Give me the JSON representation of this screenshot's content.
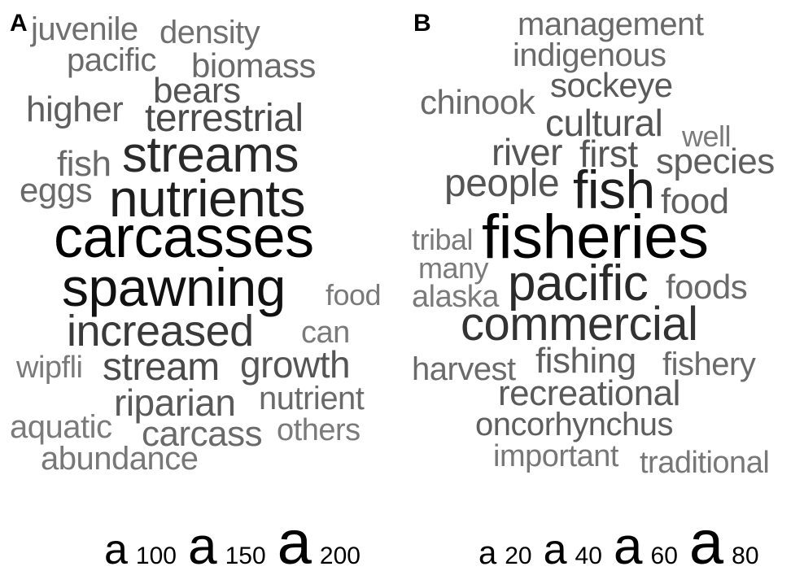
{
  "panel_a": {
    "label": "A",
    "words": [
      {
        "text": "juvenile",
        "color": "#6f6f6f"
      },
      {
        "text": "density",
        "color": "#6f6f6f"
      },
      {
        "text": "pacific",
        "color": "#6a6a6a"
      },
      {
        "text": "biomass",
        "color": "#6a6a6a"
      },
      {
        "text": "bears",
        "color": "#555555"
      },
      {
        "text": "higher",
        "color": "#5f5f5f"
      },
      {
        "text": "terrestrial",
        "color": "#4a4a4a"
      },
      {
        "text": "streams",
        "color": "#2a2a2a"
      },
      {
        "text": "fish",
        "color": "#6a6a6a"
      },
      {
        "text": "eggs",
        "color": "#6a6a6a"
      },
      {
        "text": "nutrients",
        "color": "#1e1e1e"
      },
      {
        "text": "carcasses",
        "color": "#000000"
      },
      {
        "text": "spawning",
        "color": "#111111"
      },
      {
        "text": "food",
        "color": "#7a7a7a"
      },
      {
        "text": "increased",
        "color": "#3a3a3a"
      },
      {
        "text": "can",
        "color": "#7a7a7a"
      },
      {
        "text": "wipfli",
        "color": "#7a7a7a"
      },
      {
        "text": "stream",
        "color": "#4a4a4a"
      },
      {
        "text": "growth",
        "color": "#555555"
      },
      {
        "text": "riparian",
        "color": "#5a5a5a"
      },
      {
        "text": "nutrient",
        "color": "#6a6a6a"
      },
      {
        "text": "aquatic",
        "color": "#7a7a7a"
      },
      {
        "text": "carcass",
        "color": "#6a6a6a"
      },
      {
        "text": "others",
        "color": "#7a7a7a"
      },
      {
        "text": "abundance",
        "color": "#777777"
      }
    ],
    "legend": [
      {
        "glyph": "a",
        "value": "100"
      },
      {
        "glyph": "a",
        "value": "150"
      },
      {
        "glyph": "a",
        "value": "200"
      }
    ]
  },
  "panel_b": {
    "label": "B",
    "words": [
      {
        "text": "management",
        "color": "#6a6a6a"
      },
      {
        "text": "indigenous",
        "color": "#6a6a6a"
      },
      {
        "text": "sockeye",
        "color": "#5a5a5a"
      },
      {
        "text": "chinook",
        "color": "#6a6a6a"
      },
      {
        "text": "cultural",
        "color": "#555555"
      },
      {
        "text": "well",
        "color": "#7a7a7a"
      },
      {
        "text": "river",
        "color": "#555555"
      },
      {
        "text": "first",
        "color": "#555555"
      },
      {
        "text": "species",
        "color": "#5f5f5f"
      },
      {
        "text": "people",
        "color": "#555555"
      },
      {
        "text": "fish",
        "color": "#1e1e1e"
      },
      {
        "text": "food",
        "color": "#5f5f5f"
      },
      {
        "text": "tribal",
        "color": "#7a7a7a"
      },
      {
        "text": "fisheries",
        "color": "#000000"
      },
      {
        "text": "many",
        "color": "#7a7a7a"
      },
      {
        "text": "pacific",
        "color": "#2a2a2a"
      },
      {
        "text": "foods",
        "color": "#6a6a6a"
      },
      {
        "text": "alaska",
        "color": "#7a7a7a"
      },
      {
        "text": "commercial",
        "color": "#333333"
      },
      {
        "text": "harvest",
        "color": "#6a6a6a"
      },
      {
        "text": "fishing",
        "color": "#5f5f5f"
      },
      {
        "text": "fishery",
        "color": "#6a6a6a"
      },
      {
        "text": "recreational",
        "color": "#5a5a5a"
      },
      {
        "text": "oncorhynchus",
        "color": "#5f5f5f"
      },
      {
        "text": "important",
        "color": "#777777"
      },
      {
        "text": "traditional",
        "color": "#777777"
      }
    ],
    "legend": [
      {
        "glyph": "a",
        "value": "20"
      },
      {
        "glyph": "a",
        "value": "40"
      },
      {
        "glyph": "a",
        "value": "60"
      },
      {
        "glyph": "a",
        "value": "80"
      }
    ]
  }
}
